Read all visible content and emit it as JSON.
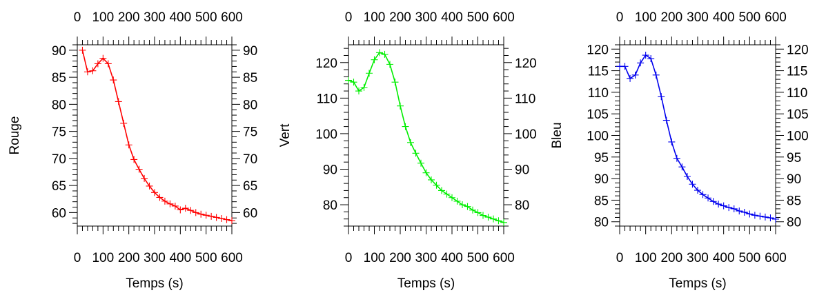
{
  "chart_data": [
    {
      "type": "line",
      "xlabel": "Temps (s)",
      "ylabel": "Rouge",
      "xlim": [
        0,
        600
      ],
      "ylim": [
        57.5,
        91
      ],
      "xticks": [
        0,
        100,
        200,
        300,
        400,
        500,
        600
      ],
      "yticks": [
        60,
        65,
        70,
        75,
        80,
        85,
        90
      ],
      "color": "#ff0000",
      "series": [
        {
          "x": [
            20,
            40,
            60,
            80,
            100,
            120,
            140,
            160,
            180,
            200,
            220,
            240,
            260,
            280,
            300,
            320,
            340,
            360,
            380,
            400,
            420,
            440,
            460,
            480,
            500,
            520,
            540,
            560,
            580,
            600
          ],
          "values": [
            90.0,
            86.0,
            86.2,
            87.5,
            88.5,
            87.5,
            84.5,
            80.5,
            76.5,
            72.5,
            69.8,
            68.0,
            66.3,
            64.9,
            63.7,
            62.8,
            62.1,
            61.6,
            61.2,
            60.5,
            60.8,
            60.4,
            60.0,
            59.7,
            59.5,
            59.3,
            59.1,
            58.9,
            58.7,
            58.5
          ]
        }
      ]
    },
    {
      "type": "line",
      "xlabel": "Temps (s)",
      "ylabel": "Vert",
      "xlim": [
        0,
        600
      ],
      "ylim": [
        74,
        125
      ],
      "xticks": [
        0,
        100,
        200,
        300,
        400,
        500,
        600
      ],
      "yticks": [
        80,
        90,
        100,
        110,
        120
      ],
      "color": "#00ee00",
      "series": [
        {
          "x": [
            0,
            20,
            40,
            60,
            80,
            100,
            120,
            140,
            160,
            180,
            200,
            220,
            240,
            260,
            280,
            300,
            320,
            340,
            360,
            380,
            400,
            420,
            440,
            460,
            480,
            500,
            520,
            540,
            560,
            580,
            600
          ],
          "values": [
            115.0,
            114.5,
            112.0,
            113.0,
            117.0,
            120.8,
            122.8,
            122.3,
            119.5,
            114.5,
            107.8,
            102.0,
            97.5,
            94.5,
            91.7,
            89.0,
            87.0,
            85.5,
            84.0,
            83.0,
            82.0,
            81.0,
            80.0,
            79.5,
            78.5,
            77.8,
            77.0,
            76.5,
            76.0,
            75.5,
            75.0
          ]
        }
      ]
    },
    {
      "type": "line",
      "xlabel": "Temps (s)",
      "ylabel": "Bleu",
      "xlim": [
        0,
        600
      ],
      "ylim": [
        79,
        121
      ],
      "xticks": [
        0,
        100,
        200,
        300,
        400,
        500,
        600
      ],
      "yticks": [
        80,
        85,
        90,
        95,
        100,
        105,
        110,
        115,
        120
      ],
      "color": "#0000ee",
      "series": [
        {
          "x": [
            0,
            20,
            40,
            60,
            80,
            100,
            120,
            140,
            160,
            180,
            200,
            220,
            240,
            260,
            280,
            300,
            320,
            340,
            360,
            380,
            400,
            420,
            440,
            460,
            480,
            500,
            520,
            540,
            560,
            580,
            600
          ],
          "values": [
            116.0,
            116.0,
            113.2,
            114.0,
            116.8,
            118.6,
            117.8,
            114.0,
            109.0,
            103.5,
            98.5,
            94.7,
            92.7,
            90.5,
            88.7,
            87.3,
            86.3,
            85.5,
            84.7,
            84.1,
            83.7,
            83.3,
            83.0,
            82.5,
            82.2,
            81.8,
            81.5,
            81.3,
            81.1,
            80.9,
            80.6
          ]
        }
      ]
    }
  ]
}
